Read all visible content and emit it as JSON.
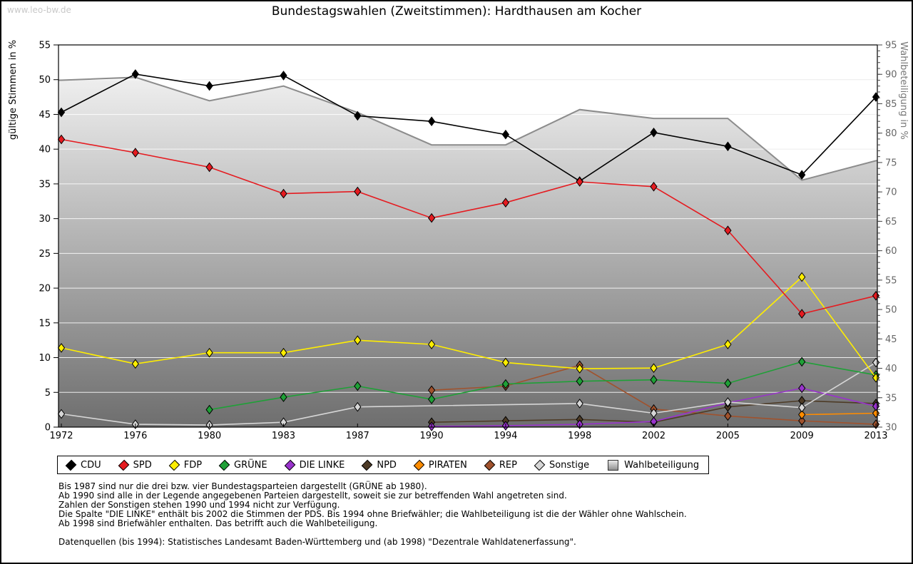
{
  "watermark": "www.leo-bw.de",
  "title": "Bundestagswahlen (Zweitstimmen): Hardthausen am Kocher",
  "chart_data": {
    "type": "line",
    "title": "Bundestagswahlen (Zweitstimmen): Hardthausen am Kocher",
    "categories": [
      "1972",
      "1976",
      "1980",
      "1983",
      "1987",
      "1990",
      "1994",
      "1998",
      "2002",
      "2005",
      "2009",
      "2013"
    ],
    "left_axis": {
      "label": "gültige Stimmen in %",
      "min": 0,
      "max": 55,
      "step": 5
    },
    "right_axis": {
      "label": "Wahlbeteiligung in %",
      "min": 30,
      "max": 95,
      "step": 5,
      "minor_step": 1
    },
    "grid": {
      "horizontal_every_left_units": 5,
      "color_on_white": "#ececec",
      "color_on_area": "#ffffff"
    },
    "series": [
      {
        "name": "CDU",
        "color": "#000000",
        "axis": "left",
        "values": [
          45.3,
          50.8,
          49.1,
          50.6,
          44.8,
          44.0,
          42.1,
          35.4,
          42.4,
          40.4,
          36.3,
          47.5
        ]
      },
      {
        "name": "SPD",
        "color": "#e51b20",
        "axis": "left",
        "values": [
          41.4,
          39.5,
          37.4,
          33.6,
          33.9,
          30.1,
          32.3,
          35.3,
          34.6,
          28.3,
          16.3,
          18.9
        ]
      },
      {
        "name": "FDP",
        "color": "#ffee00",
        "axis": "left",
        "values": [
          11.4,
          9.1,
          10.7,
          10.7,
          12.5,
          11.9,
          9.3,
          8.4,
          8.5,
          11.9,
          21.6,
          7.1
        ]
      },
      {
        "name": "GRÜNE",
        "color": "#1fa037",
        "axis": "left",
        "values": [
          null,
          null,
          2.5,
          4.3,
          5.9,
          4.0,
          6.2,
          6.6,
          6.8,
          6.3,
          9.4,
          7.5
        ]
      },
      {
        "name": "DIE LINKE",
        "color": "#9933cc",
        "axis": "left",
        "values": [
          null,
          null,
          null,
          null,
          null,
          0.1,
          0.2,
          0.4,
          0.8,
          3.5,
          5.6,
          3.0
        ]
      },
      {
        "name": "NPD",
        "color": "#4d3b26",
        "axis": "left",
        "values": [
          null,
          null,
          null,
          null,
          null,
          0.7,
          0.9,
          1.1,
          0.7,
          2.9,
          3.8,
          3.4
        ]
      },
      {
        "name": "PIRATEN",
        "color": "#ff8c00",
        "axis": "left",
        "values": [
          null,
          null,
          null,
          null,
          null,
          null,
          null,
          null,
          null,
          null,
          1.8,
          2.0
        ]
      },
      {
        "name": "REP",
        "color": "#a0522d",
        "axis": "left",
        "values": [
          null,
          null,
          null,
          null,
          null,
          5.3,
          5.9,
          8.9,
          2.6,
          1.6,
          0.9,
          0.4
        ]
      },
      {
        "name": "Sonstige",
        "color": "#d6d6d6",
        "axis": "left",
        "values": [
          1.9,
          0.4,
          0.3,
          0.7,
          2.9,
          null,
          null,
          3.4,
          2.0,
          3.6,
          2.8,
          9.3
        ]
      }
    ],
    "area_series": {
      "name": "Wahlbeteiligung",
      "axis": "right",
      "edge_color": "#8c8c8c",
      "fill_top": "#fbfbfb",
      "fill_bottom": "#6e6e6e",
      "values": [
        89.0,
        89.5,
        85.5,
        88.0,
        83.5,
        78.0,
        78.0,
        84.0,
        82.5,
        82.5,
        72.0,
        75.3
      ]
    },
    "legend_position": "bottom"
  },
  "legend": {
    "items": [
      {
        "label": "CDU",
        "color": "#000000",
        "marker": "diamond"
      },
      {
        "label": "SPD",
        "color": "#e51b20",
        "marker": "diamond"
      },
      {
        "label": "FDP",
        "color": "#ffee00",
        "marker": "diamond"
      },
      {
        "label": "GRÜNE",
        "color": "#1fa037",
        "marker": "diamond"
      },
      {
        "label": "DIE LINKE",
        "color": "#9933cc",
        "marker": "diamond"
      },
      {
        "label": "NPD",
        "color": "#4d3b26",
        "marker": "diamond"
      },
      {
        "label": "PIRATEN",
        "color": "#ff8c00",
        "marker": "diamond"
      },
      {
        "label": "REP",
        "color": "#a0522d",
        "marker": "diamond"
      },
      {
        "label": "Sonstige",
        "color": "#d6d6d6",
        "marker": "diamond"
      },
      {
        "label": "Wahlbeteiligung",
        "color": "#b0b0b0",
        "marker": "square"
      }
    ]
  },
  "notes": {
    "lines": [
      "Bis 1987 sind nur die drei bzw. vier Bundestagsparteien dargestellt (GRÜNE ab 1980).",
      "Ab 1990 sind alle in der Legende angegebenen Parteien dargestellt, soweit sie zur betreffenden Wahl angetreten sind.",
      "Zahlen der Sonstigen stehen 1990 und 1994 nicht zur Verfügung.",
      "Die Spalte \"DIE LINKE\" enthält bis 2002 die Stimmen der PDS. Bis 1994 ohne Briefwähler; die Wahlbeteiligung ist die der Wähler ohne Wahlschein.",
      "Ab 1998 sind Briefwähler enthalten. Das betrifft auch die Wahlbeteiligung.",
      "",
      "Datenquellen (bis 1994): Statistisches Landesamt Baden-Württemberg und (ab 1998) \"Dezentrale Wahldatenerfassung\"."
    ]
  }
}
